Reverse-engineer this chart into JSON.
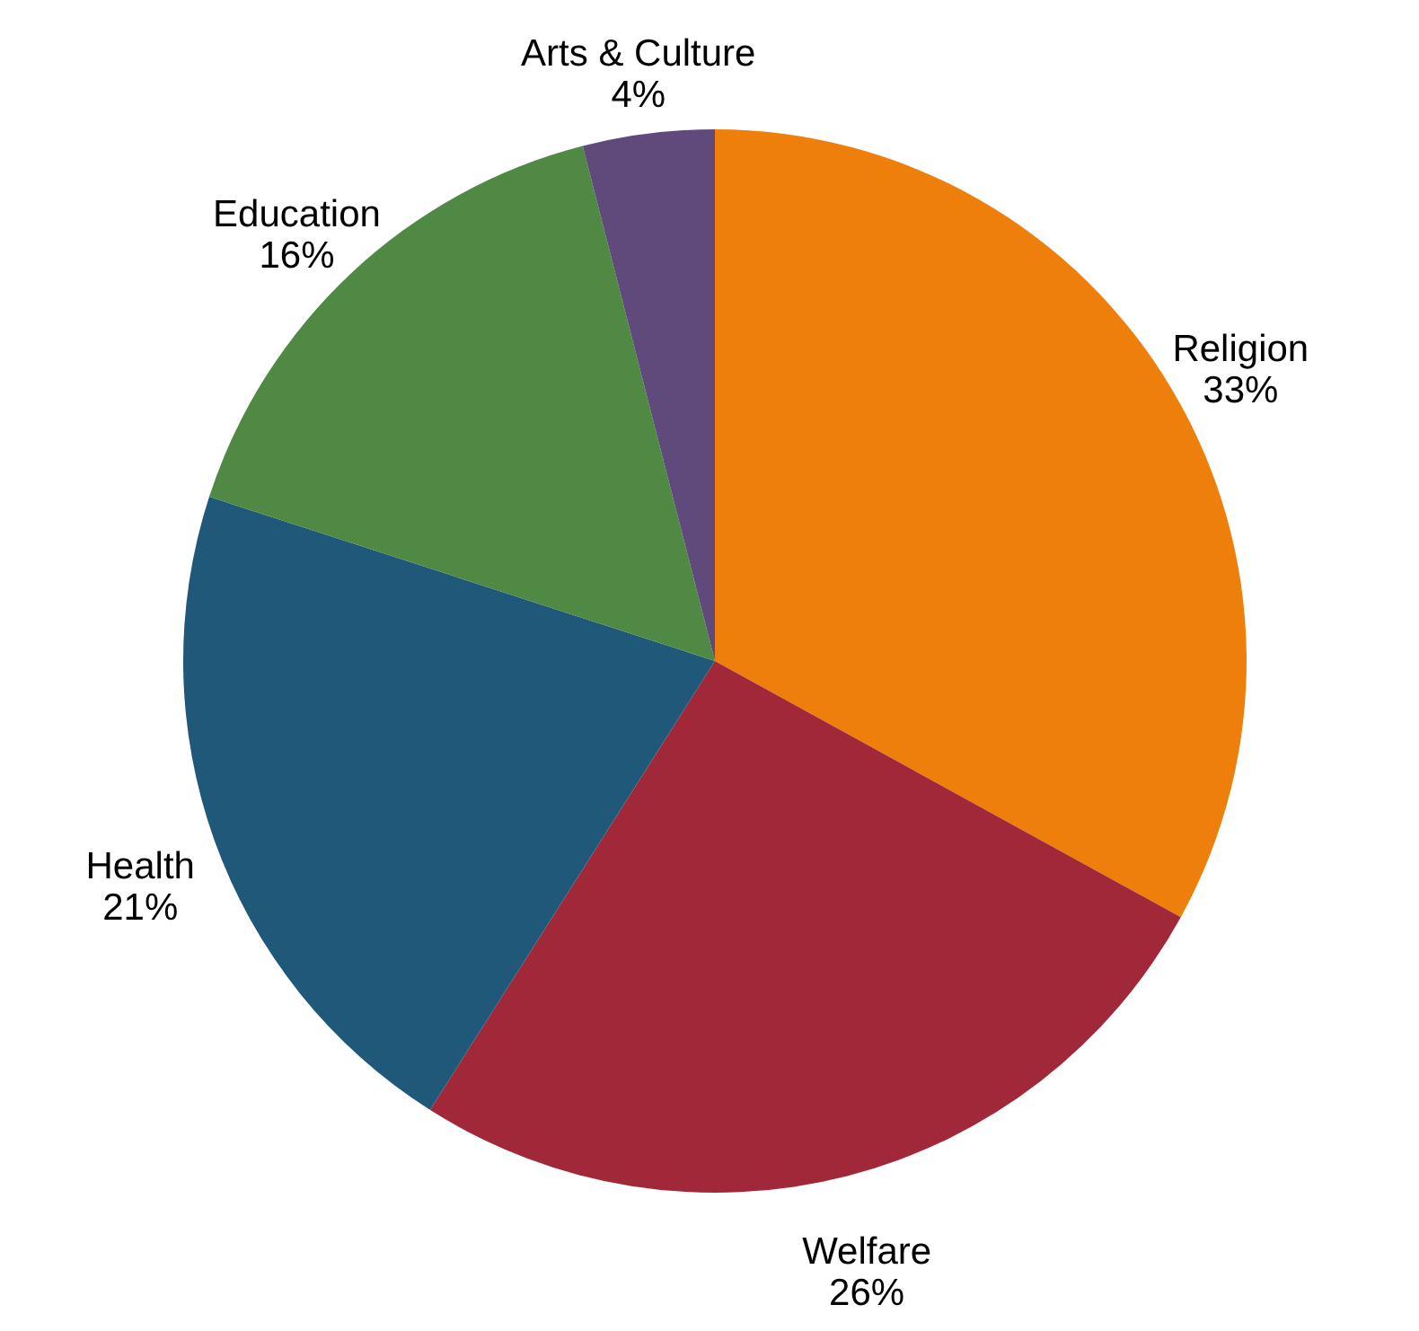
{
  "chart_data": {
    "type": "pie",
    "categories": [
      "Religion",
      "Welfare",
      "Health",
      "Education",
      "Arts & Culture"
    ],
    "values": [
      33,
      26,
      21,
      16,
      4
    ],
    "colors": [
      "#ef7f0b",
      "#a02839",
      "#1f5878",
      "#4f8944",
      "#604a7b"
    ],
    "value_labels": [
      "33%",
      "26%",
      "21%",
      "16%",
      "4%"
    ]
  }
}
